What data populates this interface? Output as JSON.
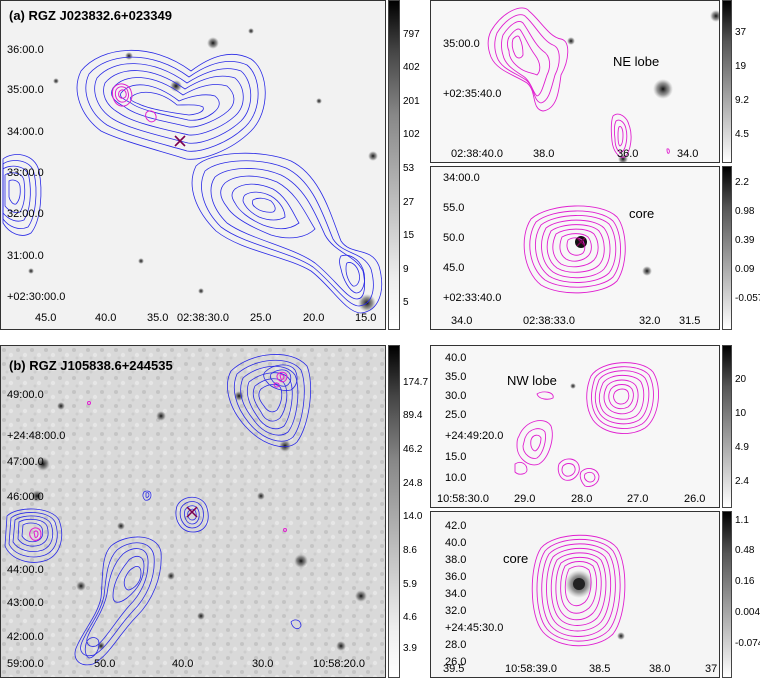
{
  "panel_a": {
    "title": "(a) RGZ J023832.6+023349",
    "ra_ticks": [
      "45.0",
      "40.0",
      "35.0",
      "02:38:30.0",
      "25.0",
      "20.0",
      "15.0"
    ],
    "dec_ticks": [
      "36:00.0",
      "35:00.0",
      "34:00.0",
      "33:00.0",
      "32:00.0",
      "31:00.0",
      "+02:30:00.0"
    ],
    "colorbar": [
      "797",
      "402",
      "201",
      "102",
      "53",
      "27",
      "15",
      "9",
      "5"
    ]
  },
  "panel_a_ne": {
    "label": "NE lobe",
    "dec_ticks": [
      "35:00.0",
      "+02:35:40.0"
    ],
    "ra_ticks": [
      "02:38:40.0",
      "38.0",
      "36.0",
      "34.0"
    ],
    "colorbar": [
      "37",
      "19",
      "9.2",
      "4.5"
    ]
  },
  "panel_a_core": {
    "label": "core",
    "dec_ticks": [
      "34:00.0",
      "55.0",
      "50.0",
      "45.0",
      "+02:33:40.0"
    ],
    "ra_ticks": [
      "34.0",
      "02:38:33.0",
      "32.0",
      "31.5"
    ],
    "colorbar": [
      "2.2",
      "0.98",
      "0.39",
      "0.09",
      "-0.057"
    ]
  },
  "panel_b": {
    "title": "(b) RGZ J105838.6+244535",
    "ra_ticks": [
      "59:00.0",
      "50.0",
      "40.0",
      "30.0",
      "10:58:20.0"
    ],
    "dec_ticks": [
      "49:00.0",
      "+24:48:00.0",
      "47:00.0",
      "46:00.0",
      "44:00.0",
      "43:00.0",
      "42:00.0"
    ],
    "colorbar": [
      "174.7",
      "89.4",
      "46.2",
      "24.8",
      "14.0",
      "8.6",
      "5.9",
      "4.6",
      "3.9"
    ]
  },
  "panel_b_nw": {
    "label": "NW lobe",
    "dec_ticks": [
      "40.0",
      "35.0",
      "30.0",
      "25.0",
      "+24:49:20.0",
      "15.0",
      "10.0"
    ],
    "ra_ticks": [
      "10:58:30.0",
      "29.0",
      "28.0",
      "27.0",
      "26.0"
    ],
    "colorbar": [
      "20",
      "10",
      "4.9",
      "2.4"
    ]
  },
  "panel_b_core": {
    "label": "core",
    "dec_ticks": [
      "42.0",
      "40.0",
      "38.0",
      "36.0",
      "34.0",
      "32.0",
      "+24:45:30.0",
      "28.0",
      "26.0"
    ],
    "ra_ticks": [
      "39.5",
      "10:58:39.0",
      "38.5",
      "38.0",
      "37"
    ],
    "colorbar": [
      "1.1",
      "0.48",
      "0.16",
      "0.0047",
      "-0.074"
    ]
  }
}
